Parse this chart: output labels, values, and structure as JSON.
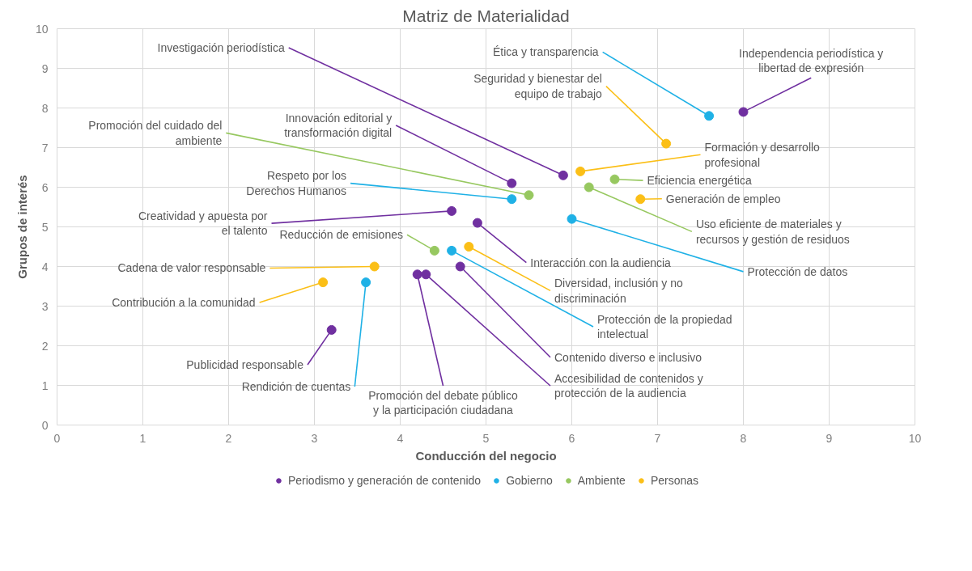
{
  "chart_data": {
    "type": "scatter",
    "title": "Matriz de Materialidad",
    "xlabel": "Conducción del negocio",
    "ylabel": "Grupos de interés",
    "xlim": [
      0,
      10
    ],
    "ylim": [
      0,
      10
    ],
    "xticks": [
      0,
      1,
      2,
      3,
      4,
      5,
      6,
      7,
      8,
      9,
      10
    ],
    "yticks": [
      0,
      1,
      2,
      3,
      4,
      5,
      6,
      7,
      8,
      9,
      10
    ],
    "grid": true,
    "legend": "bottom",
    "marker": "circle",
    "series": [
      {
        "name": "Periodismo y generación de contenido",
        "color": "#7030a0",
        "x": [
          8.0,
          5.9,
          5.3,
          4.6,
          4.9,
          4.7,
          4.2,
          4.3,
          3.2
        ],
        "values": [
          7.9,
          6.3,
          6.1,
          5.4,
          5.1,
          4.0,
          3.8,
          3.8,
          2.4
        ]
      },
      {
        "name": "Gobierno",
        "color": "#1fb1e6",
        "x": [
          7.6,
          5.3,
          6.0,
          4.6,
          3.6
        ],
        "values": [
          7.8,
          5.7,
          5.2,
          4.4,
          3.6
        ]
      },
      {
        "name": "Ambiente",
        "color": "#97c860",
        "x": [
          5.5,
          6.5,
          6.2,
          4.4
        ],
        "values": [
          5.8,
          6.2,
          6.0,
          4.4
        ]
      },
      {
        "name": "Personas",
        "color": "#fbbf17",
        "x": [
          7.1,
          6.1,
          6.8,
          4.8,
          3.7,
          3.1
        ],
        "values": [
          7.1,
          6.4,
          5.7,
          4.5,
          4.0,
          3.6
        ]
      }
    ],
    "annotations": [
      {
        "text": "Investigación periodística",
        "x": 5.9,
        "y": 6.3
      },
      {
        "text": "Innovación editorial y transformación digital",
        "x": 5.3,
        "y": 6.1
      },
      {
        "text": "Promoción del cuidado del ambiente",
        "x": 5.5,
        "y": 5.8
      },
      {
        "text": "Respeto por los Derechos Humanos",
        "x": 5.3,
        "y": 5.7
      },
      {
        "text": "Creatividad y apuesta por el talento",
        "x": 4.6,
        "y": 5.4
      },
      {
        "text": "Reducción de emisiones",
        "x": 4.4,
        "y": 4.4
      },
      {
        "text": "Cadena de valor responsable",
        "x": 3.7,
        "y": 4.0
      },
      {
        "text": "Contribución a la comunidad",
        "x": 3.1,
        "y": 3.6
      },
      {
        "text": "Publicidad responsable",
        "x": 3.2,
        "y": 2.4
      },
      {
        "text": "Rendición de cuentas",
        "x": 3.6,
        "y": 3.6
      },
      {
        "text": "Promoción del debate público y la participación ciudadana",
        "x": 4.2,
        "y": 3.8
      },
      {
        "text": "Accesibilidad de contenidos y protección de la audiencia",
        "x": 4.3,
        "y": 3.8
      },
      {
        "text": "Contenido diverso e inclusivo",
        "x": 4.7,
        "y": 4.0
      },
      {
        "text": "Protección de la propiedad intelectual",
        "x": 4.6,
        "y": 4.4
      },
      {
        "text": "Diversidad, inclusión y no discriminación",
        "x": 4.8,
        "y": 4.5
      },
      {
        "text": "Interacción con la audiencia",
        "x": 4.9,
        "y": 5.1
      },
      {
        "text": "Protección de datos",
        "x": 6.0,
        "y": 5.2
      },
      {
        "text": "Uso eficiente de materiales y recursos y gestión de residuos",
        "x": 6.2,
        "y": 6.0
      },
      {
        "text": "Generación de empleo",
        "x": 6.8,
        "y": 5.7
      },
      {
        "text": "Eficiencia energética",
        "x": 6.5,
        "y": 6.2
      },
      {
        "text": "Formación y desarrollo profesional",
        "x": 6.1,
        "y": 6.4
      },
      {
        "text": "Seguridad y bienestar del equipo de trabajo",
        "x": 7.1,
        "y": 7.1
      },
      {
        "text": "Ética y transparencia",
        "x": 7.6,
        "y": 7.8
      },
      {
        "text": "Independencia periodística y libertad de expresión",
        "x": 8.0,
        "y": 7.9
      }
    ]
  }
}
